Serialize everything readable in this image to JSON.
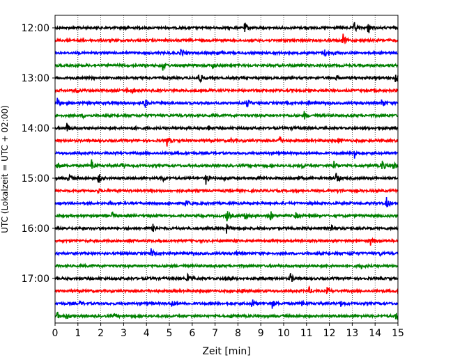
{
  "chart_data": {
    "type": "line",
    "title": "",
    "xlabel": "Zeit  [min]",
    "ylabel": "UTC (Lokalzeit = UTC + 02:00)",
    "xlim": [
      0,
      15
    ],
    "x_ticks": [
      "0",
      "1",
      "2",
      "3",
      "4",
      "5",
      "6",
      "7",
      "8",
      "9",
      "10",
      "11",
      "12",
      "13",
      "14",
      "15"
    ],
    "y_ticks": [
      "12:00",
      "13:00",
      "14:00",
      "15:00",
      "16:00",
      "17:00"
    ],
    "grid_x": true,
    "trace_start_times": [
      "12:00",
      "12:15",
      "12:30",
      "12:45",
      "13:00",
      "13:15",
      "13:30",
      "13:45",
      "14:00",
      "14:15",
      "14:30",
      "14:45",
      "15:00",
      "15:15",
      "15:30",
      "15:45",
      "16:00",
      "16:15",
      "16:30",
      "16:45",
      "17:00",
      "17:15",
      "17:30",
      "17:45"
    ],
    "trace_colors": [
      "#000000",
      "#ff0000",
      "#0000ff",
      "#008000"
    ],
    "events": [
      [
        [
          3.1,
          0.3
        ],
        [
          8.3,
          0.8
        ],
        [
          10.9,
          0.3
        ],
        [
          13.1,
          0.9
        ],
        [
          13.7,
          1.0
        ]
      ],
      [
        [
          1.0,
          0.3
        ],
        [
          12.6,
          0.9
        ]
      ],
      [
        [
          5.5,
          0.7
        ],
        [
          7.1,
          0.3
        ],
        [
          11.8,
          0.5
        ],
        [
          12.2,
          0.3
        ]
      ],
      [
        [
          4.7,
          0.9
        ],
        [
          6.9,
          0.5
        ]
      ],
      [
        [
          6.3,
          0.9
        ],
        [
          12.3,
          0.3
        ],
        [
          14.9,
          0.8
        ]
      ],
      [
        [
          0.9,
          0.5
        ],
        [
          3.1,
          0.4
        ],
        [
          3.4,
          0.5
        ]
      ],
      [
        [
          0.1,
          0.9
        ],
        [
          3.9,
          1.0
        ],
        [
          8.4,
          0.7
        ],
        [
          11.1,
          0.3
        ],
        [
          14.3,
          0.9
        ]
      ],
      [
        [
          1.2,
          0.3
        ],
        [
          10.9,
          0.6
        ]
      ],
      [
        [
          0.5,
          0.9
        ],
        [
          3.4,
          0.4
        ],
        [
          6.7,
          0.4
        ],
        [
          10.4,
          0.3
        ],
        [
          14.2,
          0.3
        ]
      ],
      [
        [
          4.9,
          0.9
        ],
        [
          7.7,
          0.3
        ],
        [
          9.8,
          0.9
        ],
        [
          12.4,
          0.4
        ]
      ],
      [
        [
          13.1,
          1.0
        ]
      ],
      [
        [
          0.1,
          0.7
        ],
        [
          1.6,
          1.0
        ],
        [
          2.9,
          0.4
        ],
        [
          10.8,
          0.3
        ],
        [
          12.2,
          0.9
        ],
        [
          14.3,
          1.0
        ],
        [
          14.8,
          0.8
        ]
      ],
      [
        [
          0.6,
          0.9
        ],
        [
          1.9,
          0.8
        ],
        [
          4.7,
          0.6
        ],
        [
          6.6,
          1.0
        ],
        [
          7.4,
          0.3
        ],
        [
          8.9,
          0.3
        ],
        [
          10.6,
          0.4
        ],
        [
          12.3,
          1.0
        ]
      ],
      [
        [
          1.9,
          0.3
        ],
        [
          12.4,
          0.3
        ]
      ],
      [
        [
          2.4,
          0.3
        ],
        [
          5.7,
          0.6
        ],
        [
          14.5,
          0.9
        ]
      ],
      [
        [
          2.5,
          0.6
        ],
        [
          7.5,
          1.0
        ],
        [
          8.3,
          0.7
        ],
        [
          9.4,
          1.0
        ],
        [
          10.5,
          0.6
        ],
        [
          11.1,
          0.3
        ]
      ],
      [
        [
          4.3,
          0.9
        ],
        [
          7.5,
          0.7
        ],
        [
          12.1,
          0.7
        ]
      ],
      [
        [
          3.2,
          0.4
        ],
        [
          7.9,
          0.3
        ],
        [
          13.8,
          0.7
        ]
      ],
      [
        [
          4.2,
          0.7
        ],
        [
          7.9,
          0.3
        ],
        [
          12.9,
          0.3
        ],
        [
          14.2,
          0.3
        ]
      ],
      [
        [
          13.4,
          0.3
        ]
      ],
      [
        [
          5.8,
          0.7
        ],
        [
          7.5,
          0.6
        ],
        [
          10.3,
          0.8
        ]
      ],
      [
        [
          8.2,
          0.3
        ],
        [
          11.1,
          0.6
        ],
        [
          11.9,
          0.5
        ]
      ],
      [
        [
          1.1,
          0.3
        ],
        [
          5.1,
          0.6
        ],
        [
          8.6,
          0.9
        ],
        [
          9.5,
          0.7
        ],
        [
          10.8,
          0.5
        ],
        [
          12.5,
          0.4
        ]
      ],
      [
        [
          0.1,
          0.6
        ],
        [
          0.5,
          0.5
        ],
        [
          2.6,
          0.3
        ],
        [
          7.7,
          0.3
        ],
        [
          14.9,
          0.5
        ]
      ]
    ]
  }
}
